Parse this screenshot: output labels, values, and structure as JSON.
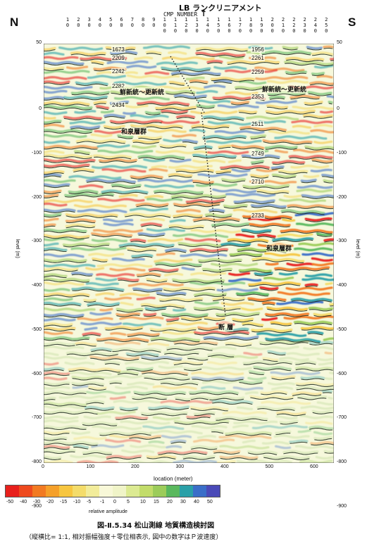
{
  "compass": {
    "north": "N",
    "south": "S"
  },
  "header": {
    "lineament": "LB ランクリニアメント",
    "arrow": "↑",
    "cmp_title": "CMP NUMBER"
  },
  "cmp_numbers": [
    "10",
    "20",
    "30",
    "40",
    "50",
    "60",
    "70",
    "80",
    "90",
    "100",
    "110",
    "120",
    "130",
    "140",
    "150",
    "160",
    "170",
    "180",
    "190",
    "200",
    "210",
    "220",
    "230",
    "240",
    "250"
  ],
  "axis": {
    "y_label": "level (m)",
    "x_label": "location (meter)",
    "y_ticks": [
      "50",
      "0",
      "-100",
      "-200",
      "-300",
      "-400",
      "-500",
      "-600",
      "-700",
      "-800",
      "-900"
    ],
    "x_ticks": [
      "0",
      "100",
      "200",
      "300",
      "400",
      "500",
      "600"
    ]
  },
  "velocities": [
    "1673",
    "2209",
    "2242",
    "2282",
    "2434",
    "1956",
    "2261",
    "2259",
    "2353",
    "2511",
    "2749",
    "2710",
    "2733"
  ],
  "annotations": [
    "鮮新統〜更新統",
    "和泉層群",
    "鮮新統〜更新統",
    "和泉層群",
    "断 層"
  ],
  "colorbar": {
    "ticks": [
      "-50",
      "-40",
      "-30",
      "-20",
      "-15",
      "-10",
      "-5",
      "-1",
      "0",
      "5",
      "10",
      "15",
      "20",
      "30",
      "40",
      "50"
    ],
    "colors": [
      "#e8201c",
      "#ee4a1e",
      "#f27a22",
      "#f5a02a",
      "#f7c640",
      "#f4dc6a",
      "#f2ec9a",
      "#f8f8d8",
      "#f0f4c8",
      "#dcea92",
      "#c2dc6a",
      "#9ccc5a",
      "#5ab85e",
      "#2aa0a8",
      "#3a6ec8",
      "#4a4ab8"
    ],
    "label": "relative amplitude"
  },
  "caption": {
    "figure": "図-Ⅱ.5.34 松山測線 地質構造検討図",
    "note": "（縦横比= 1:1, 相対振幅強度＋零位相表示, 図中の数字はＰ波速度）"
  }
}
